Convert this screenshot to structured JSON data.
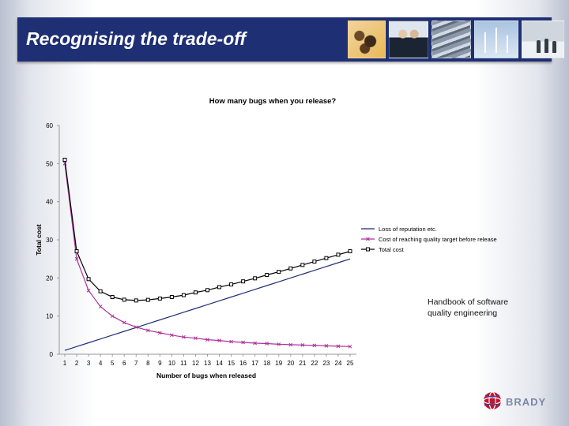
{
  "slide": {
    "title": "Recognising the trade-off",
    "note_line1": "Handbook of software",
    "note_line2": "quality engineering",
    "logo_text": "BRADY"
  },
  "colors": {
    "banner": "#1f2f73",
    "series_reputation": "#1f2f73",
    "series_cost": "#b0309c",
    "series_total": "#000000"
  },
  "chart_data": {
    "type": "line",
    "title": "How many bugs when you release?",
    "xlabel": "Number of bugs when released",
    "ylabel": "Total cost",
    "x": [
      1,
      2,
      3,
      4,
      5,
      6,
      7,
      8,
      9,
      10,
      11,
      12,
      13,
      14,
      15,
      16,
      17,
      18,
      19,
      20,
      21,
      22,
      23,
      24,
      25
    ],
    "xlim": [
      1,
      25
    ],
    "ylim": [
      0,
      60
    ],
    "yticks": [
      0,
      10,
      20,
      30,
      40,
      50,
      60
    ],
    "grid": false,
    "legend_position": "right",
    "series": [
      {
        "name": "Loss of reputation etc.",
        "marker": "none",
        "values": [
          1,
          2,
          3,
          4,
          5,
          6,
          7,
          8,
          9,
          10,
          11,
          12,
          13,
          14,
          15,
          16,
          17,
          18,
          19,
          20,
          21,
          22,
          23,
          24,
          25
        ]
      },
      {
        "name": "Cost of reaching quality target before release",
        "marker": "x",
        "values": [
          50,
          25,
          16.7,
          12.5,
          10,
          8.3,
          7.1,
          6.25,
          5.6,
          5,
          4.5,
          4.2,
          3.8,
          3.6,
          3.3,
          3.1,
          2.9,
          2.8,
          2.6,
          2.5,
          2.4,
          2.3,
          2.2,
          2.1,
          2
        ]
      },
      {
        "name": "Total cost",
        "marker": "square",
        "values": [
          51,
          27,
          19.7,
          16.5,
          15,
          14.3,
          14.1,
          14.25,
          14.6,
          15,
          15.5,
          16.2,
          16.8,
          17.6,
          18.3,
          19.1,
          19.9,
          20.8,
          21.6,
          22.5,
          23.4,
          24.3,
          25.2,
          26.1,
          27
        ]
      }
    ]
  }
}
